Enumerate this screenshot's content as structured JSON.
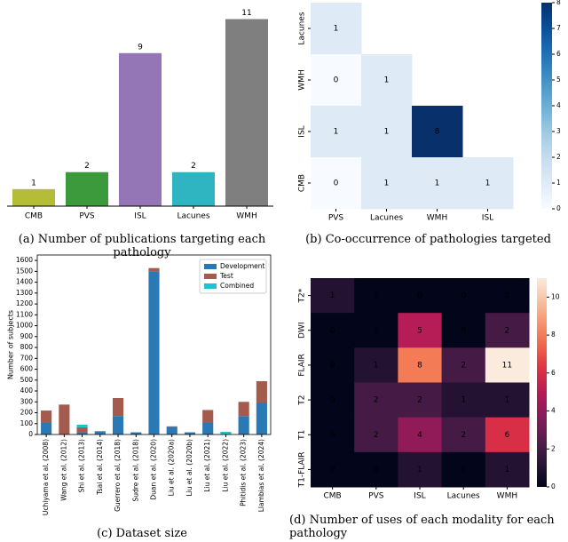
{
  "chart_data": [
    {
      "type": "bar",
      "caption": "(a) Number of publications targeting each pathology",
      "categories": [
        "CMB",
        "PVS",
        "ISL",
        "Lacunes",
        "WMH"
      ],
      "values": [
        1,
        2,
        9,
        2,
        11
      ],
      "colors": [
        "#b5bd38",
        "#3c9a3c",
        "#9475b6",
        "#2fb5c2",
        "#7f7f7f"
      ],
      "ylim": [
        0,
        11.6
      ]
    },
    {
      "type": "heatmap",
      "caption": "(b) Co-occurrence of pathologies targeted",
      "x_categories": [
        "PVS",
        "Lacunes",
        "WMH",
        "ISL"
      ],
      "y_categories": [
        "Lacunes",
        "WMH",
        "ISL",
        "CMB"
      ],
      "values": [
        [
          1,
          null,
          null,
          null
        ],
        [
          0,
          1,
          null,
          null
        ],
        [
          1,
          1,
          8,
          null
        ],
        [
          0,
          1,
          1,
          1
        ]
      ],
      "colormap": "Blues",
      "clim": [
        0,
        8
      ],
      "colorbar_ticks": [
        0,
        1,
        2,
        3,
        4,
        5,
        6,
        7,
        8
      ]
    },
    {
      "type": "stacked_bar",
      "caption": "(c) Dataset size",
      "y_label": "Number of subjects",
      "categories": [
        "Uchiyama et al. (2008)",
        "Wang et al. (2012)",
        "Shi et al. (2013)",
        "Tsai et al. (2014)",
        "Guerrero et al. (2018)",
        "Sudre et al. (2018)",
        "Duan et al. (2020)",
        "Liu et al. (2020a)",
        "Liu et al. (2020b)",
        "Liu et al. (2021)",
        "Liu et al. (2022)",
        "Phitidis et al. (2023)",
        "Llambias et al. (2024)"
      ],
      "series": [
        {
          "name": "Development",
          "color": "#2a78b4",
          "values": [
            110,
            0,
            20,
            30,
            170,
            20,
            1500,
            70,
            20,
            110,
            0,
            170,
            290
          ]
        },
        {
          "name": "Test",
          "color": "#a55a4e",
          "values": [
            110,
            275,
            45,
            0,
            165,
            0,
            30,
            5,
            0,
            115,
            0,
            130,
            200
          ]
        },
        {
          "name": "Combined",
          "color": "#22c0d0",
          "values": [
            0,
            0,
            25,
            0,
            0,
            0,
            0,
            0,
            0,
            0,
            25,
            0,
            0
          ]
        }
      ],
      "ylim": [
        0,
        1650
      ],
      "yticks": [
        0,
        100,
        200,
        300,
        400,
        500,
        600,
        700,
        800,
        900,
        1000,
        1100,
        1200,
        1300,
        1400,
        1500,
        1600
      ],
      "legend": "upper right"
    },
    {
      "type": "heatmap",
      "caption": "(d) Number of uses of each modality for each pathology",
      "x_categories": [
        "CMB",
        "PVS",
        "ISL",
        "Lacunes",
        "WMH"
      ],
      "y_categories": [
        "T2*",
        "DWI",
        "FLAIR",
        "T2",
        "T1",
        "T1-FLAIR"
      ],
      "values": [
        [
          1,
          0,
          0,
          0,
          0
        ],
        [
          0,
          0,
          5,
          0,
          2
        ],
        [
          0,
          1,
          8,
          2,
          11
        ],
        [
          0,
          2,
          2,
          1,
          1
        ],
        [
          0,
          2,
          4,
          2,
          6
        ],
        [
          0,
          0,
          1,
          0,
          1
        ]
      ],
      "colormap": "rocket",
      "clim": [
        0,
        11
      ],
      "colorbar_ticks": [
        0,
        2,
        4,
        6,
        8,
        10
      ]
    }
  ]
}
